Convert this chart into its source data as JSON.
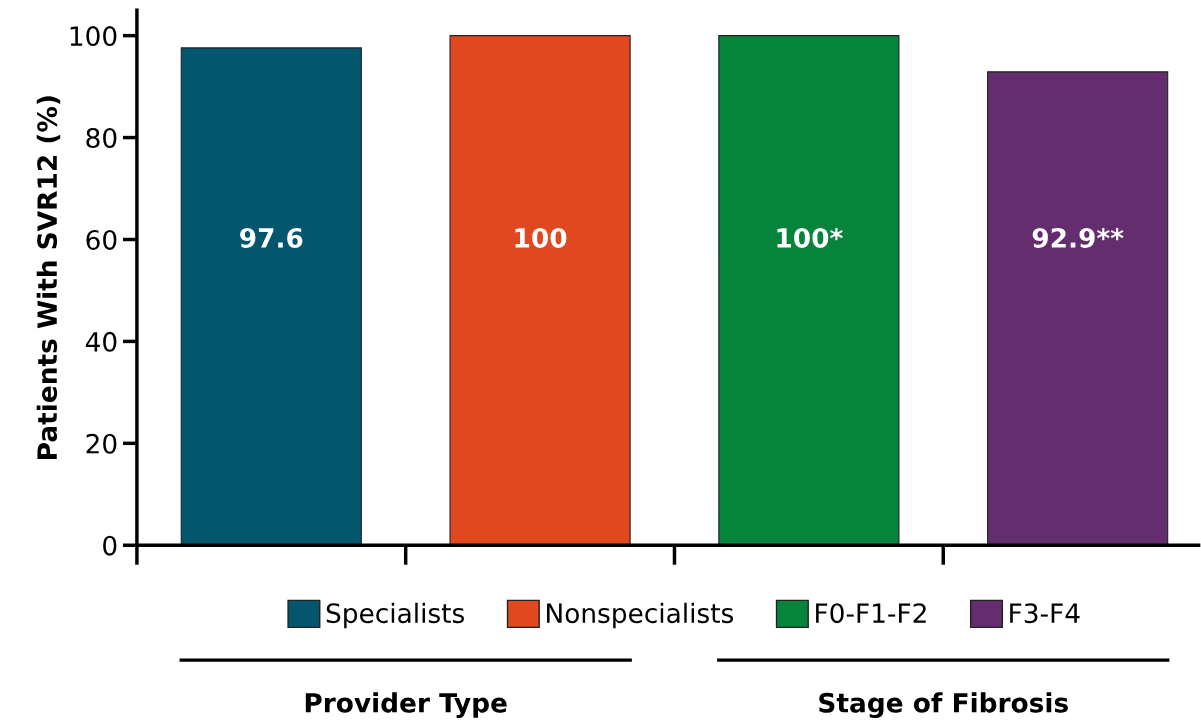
{
  "chart_data": {
    "type": "bar",
    "ylabel": "Patients With SVR12 (%)",
    "categories": [
      null,
      null,
      null,
      null
    ],
    "series": [
      {
        "name": "Specialists",
        "color": "#04566e",
        "values": [
          97.6,
          null,
          null,
          null
        ],
        "value_labels": [
          "97.6",
          null,
          null,
          null
        ]
      },
      {
        "name": "Nonspecialists",
        "color": "#e0491f",
        "values": [
          null,
          100,
          null,
          null
        ],
        "value_labels": [
          null,
          "100",
          null,
          null
        ]
      },
      {
        "name": "F0-F1-F2",
        "color": "#06843c",
        "values": [
          null,
          null,
          100,
          null
        ],
        "value_labels": [
          null,
          null,
          "100*",
          null
        ]
      },
      {
        "name": "F3-F4",
        "color": "#642d6e",
        "values": [
          null,
          null,
          null,
          92.9
        ],
        "value_labels": [
          null,
          null,
          null,
          "92.9**"
        ]
      }
    ],
    "annotations": [
      "Provider Type",
      "Stage of Fibrosis"
    ],
    "ylim": [
      0,
      105
    ],
    "yticks": [
      0,
      20,
      40,
      60,
      80,
      100
    ],
    "grid": false,
    "legend": "bottom"
  }
}
